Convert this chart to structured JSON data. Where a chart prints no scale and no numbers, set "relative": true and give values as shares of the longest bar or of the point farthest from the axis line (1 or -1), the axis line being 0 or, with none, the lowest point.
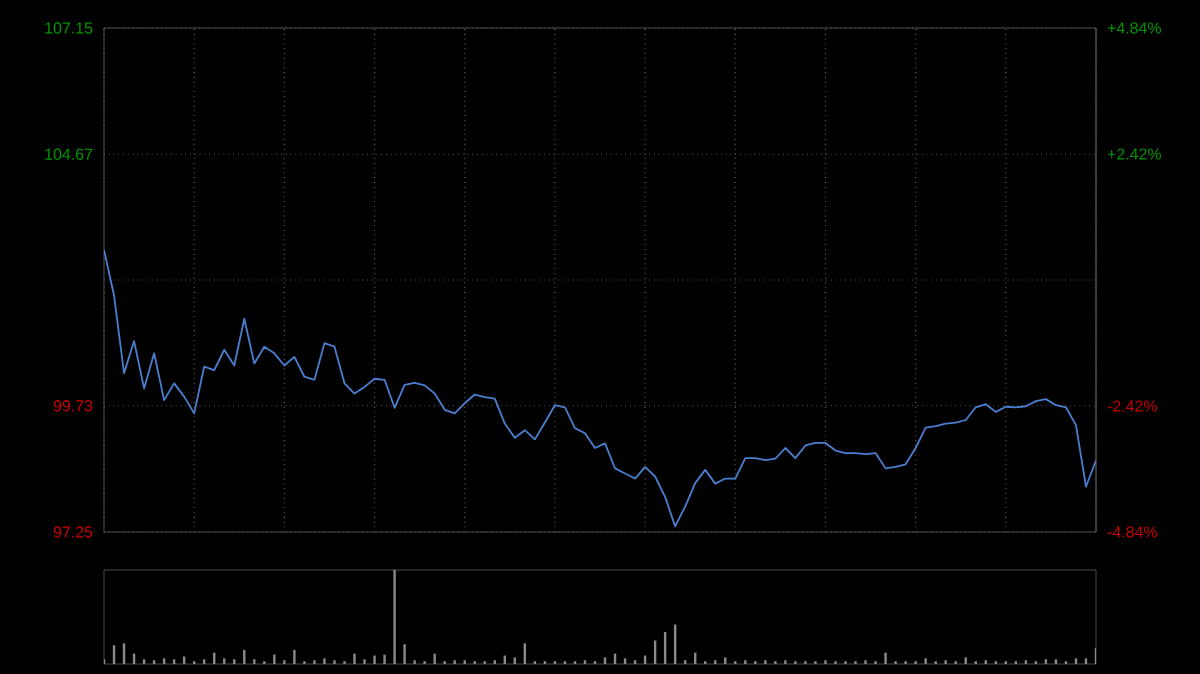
{
  "chart_data": [
    {
      "type": "line",
      "color": "#4a7fd0",
      "grid": true,
      "tick_labels": "y",
      "categories": [
        null,
        null,
        null,
        null,
        null,
        null,
        null,
        null,
        null,
        null,
        null,
        null,
        null,
        null,
        null,
        null,
        null,
        null,
        null,
        null,
        null,
        null,
        null,
        null,
        null,
        null,
        null,
        null,
        null,
        null,
        null,
        null,
        null,
        null,
        null,
        null,
        null,
        null,
        null,
        null,
        null,
        null,
        null,
        null,
        null,
        null,
        null,
        null,
        null,
        null,
        null,
        null,
        null,
        null,
        null,
        null,
        null,
        null,
        null,
        null,
        null,
        null,
        null,
        null,
        null,
        null,
        null,
        null,
        null,
        null,
        null,
        null,
        null,
        null,
        null,
        null,
        null,
        null,
        null,
        null,
        null,
        null,
        null,
        null,
        null,
        null,
        null,
        null,
        null,
        null,
        null,
        null,
        null,
        null,
        null,
        null,
        null,
        null,
        null,
        null
      ],
      "ylim": [
        97.25,
        107.15
      ],
      "yticks": [
        97.25,
        99.73,
        {
          "value": 102.2,
          "label": null
        },
        104.67,
        107.15
      ],
      "y2lim": [
        -4.84,
        4.84
      ],
      "y2ticks": [
        {
          "value": -4.84,
          "label": "-4.84%"
        },
        {
          "value": -2.42,
          "label": "-2.42%"
        },
        {
          "value": 0,
          "label": null
        },
        {
          "value": 2.42,
          "label": "+2.42%"
        },
        {
          "value": 4.84,
          "label": "+4.84%"
        }
      ],
      "values": [
        102.79,
        101.9,
        100.37,
        101.0,
        100.07,
        100.76,
        99.84,
        100.17,
        99.91,
        99.58,
        100.5,
        100.43,
        100.83,
        100.52,
        101.44,
        100.56,
        100.89,
        100.76,
        100.52,
        100.69,
        100.3,
        100.24,
        100.96,
        100.89,
        100.17,
        99.97,
        100.1,
        100.26,
        100.24,
        99.69,
        100.14,
        100.18,
        100.13,
        99.97,
        99.65,
        99.58,
        99.78,
        99.95,
        99.9,
        99.87,
        99.38,
        99.1,
        99.25,
        99.07,
        99.4,
        99.74,
        99.7,
        99.29,
        99.19,
        98.9,
        98.99,
        98.5,
        98.4,
        98.3,
        98.53,
        98.34,
        97.94,
        97.36,
        97.75,
        98.21,
        98.47,
        98.2,
        98.3,
        98.3,
        98.7,
        98.7,
        98.66,
        98.69,
        98.9,
        98.7,
        98.95,
        99.0,
        99.0,
        98.85,
        98.8,
        98.8,
        98.78,
        98.8,
        98.5,
        98.53,
        98.58,
        98.9,
        99.3,
        99.33,
        99.38,
        99.4,
        99.45,
        99.7,
        99.76,
        99.61,
        99.71,
        99.7,
        99.72,
        99.82,
        99.86,
        99.74,
        99.7,
        99.35,
        98.14,
        98.66
      ]
    },
    {
      "type": "bar",
      "relative": true,
      "color": "#8a8a8a",
      "categories": [
        null,
        null,
        null,
        null,
        null,
        null,
        null,
        null,
        null,
        null,
        null,
        null,
        null,
        null,
        null,
        null,
        null,
        null,
        null,
        null,
        null,
        null,
        null,
        null,
        null,
        null,
        null,
        null,
        null,
        null,
        null,
        null,
        null,
        null,
        null,
        null,
        null,
        null,
        null,
        null,
        null,
        null,
        null,
        null,
        null,
        null,
        null,
        null,
        null,
        null,
        null,
        null,
        null,
        null,
        null,
        null,
        null,
        null,
        null,
        null,
        null,
        null,
        null,
        null,
        null,
        null,
        null,
        null,
        null,
        null,
        null,
        null,
        null,
        null,
        null,
        null,
        null,
        null,
        null,
        null,
        null,
        null,
        null,
        null,
        null,
        null,
        null,
        null,
        null,
        null,
        null,
        null,
        null,
        null,
        null,
        null,
        null,
        null,
        null,
        null
      ],
      "values": [
        0.05,
        0.2,
        0.22,
        0.11,
        0.05,
        0.04,
        0.06,
        0.05,
        0.08,
        0.03,
        0.05,
        0.12,
        0.06,
        0.05,
        0.15,
        0.05,
        0.03,
        0.1,
        0.04,
        0.15,
        0.03,
        0.04,
        0.06,
        0.04,
        0.03,
        0.11,
        0.05,
        0.09,
        0.1,
        1,
        0.21,
        0.04,
        0.03,
        0.11,
        0.03,
        0.04,
        0.04,
        0.03,
        0.03,
        0.04,
        0.09,
        0.07,
        0.22,
        0.03,
        0.03,
        0.03,
        0.03,
        0.03,
        0.04,
        0.03,
        0.07,
        0.11,
        0.06,
        0.04,
        0.09,
        0.25,
        0.34,
        0.42,
        0.04,
        0.12,
        0.03,
        0.04,
        0.07,
        0.03,
        0.04,
        0.03,
        0.04,
        0.03,
        0.04,
        0.03,
        0.03,
        0.03,
        0.04,
        0.03,
        0.03,
        0.03,
        0.04,
        0.03,
        0.12,
        0.03,
        0.03,
        0.03,
        0.06,
        0.03,
        0.04,
        0.03,
        0.07,
        0.03,
        0.04,
        0.03,
        0.03,
        0.03,
        0.04,
        0.03,
        0.05,
        0.05,
        0.03,
        0.06,
        0.06,
        0.17
      ]
    }
  ]
}
